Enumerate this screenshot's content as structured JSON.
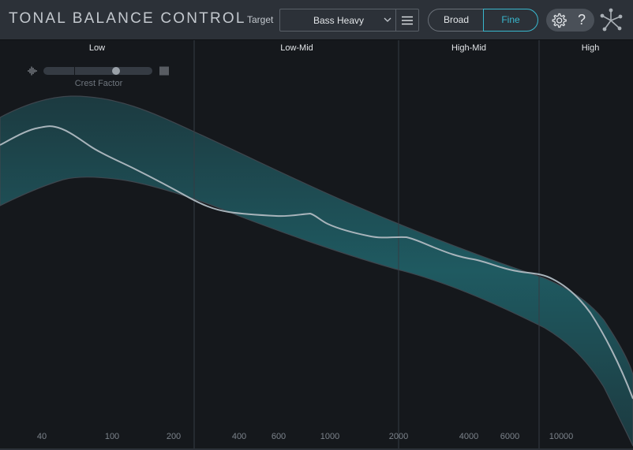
{
  "app": {
    "title": "TONAL BALANCE CONTROL"
  },
  "toolbar": {
    "target_label": "Target",
    "target_value": "Bass Heavy",
    "target_menu_icon": "hamburger-menu-icon",
    "resolution_options": [
      "Broad",
      "Fine"
    ],
    "resolution_selected": "Fine",
    "settings_icon": "gear-icon",
    "help_label": "?",
    "logo_icon": "izotope-logo-icon"
  },
  "colors": {
    "accent": "#39b7cd",
    "band_fill": "#1d5157",
    "curve": "#a8b4bb",
    "background": "#15181c",
    "toolbar": "#2c3138"
  },
  "bands": [
    {
      "label": "Low"
    },
    {
      "label": "Low-Mid"
    },
    {
      "label": "High-Mid"
    },
    {
      "label": "High"
    }
  ],
  "crest_factor": {
    "label": "Crest Factor",
    "level": 0.68
  },
  "frequency_axis": {
    "labels": [
      "40",
      "100",
      "200",
      "400",
      "600",
      "1000",
      "2000",
      "4000",
      "6000",
      "10000"
    ]
  }
}
